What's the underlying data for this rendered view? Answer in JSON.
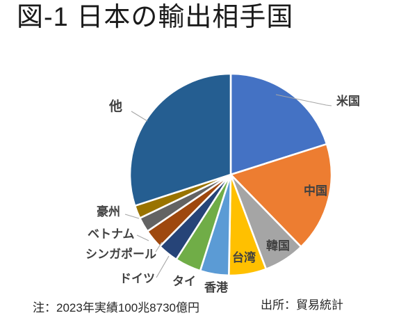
{
  "title": "図-1 日本の輸出相手国",
  "notes": {
    "left": "注：2023年実績100兆8730億円",
    "right": "出所：貿易統計"
  },
  "colors": {
    "background": "#ffffff",
    "label_text": "#404040",
    "leader_line": "#a6a6a6",
    "title_text": "#1a1a1a"
  },
  "chart_data": {
    "type": "pie",
    "title": "図-1 日本の輸出相手国",
    "unit": "%",
    "start_angle_deg": 0,
    "direction": "clockwise",
    "legend": "none",
    "slices": [
      {
        "id": "usa",
        "label": "米国",
        "value": 20.1,
        "color": "#4472C4",
        "label_placement": "outside-leader"
      },
      {
        "id": "china",
        "label": "中国",
        "value": 17.6,
        "color": "#ED7D31",
        "label_placement": "inside"
      },
      {
        "id": "korea",
        "label": "韓国",
        "value": 6.6,
        "color": "#A5A5A5",
        "label_placement": "inside"
      },
      {
        "id": "taiwan",
        "label": "台湾",
        "value": 6.0,
        "color": "#FFC000",
        "label_placement": "inside"
      },
      {
        "id": "hongkong",
        "label": "香港",
        "value": 4.6,
        "color": "#5B9BD5",
        "label_placement": "outside"
      },
      {
        "id": "thailand",
        "label": "タイ",
        "value": 4.2,
        "color": "#70AD47",
        "label_placement": "outside"
      },
      {
        "id": "germany",
        "label": "ドイツ",
        "value": 3.3,
        "color": "#264478",
        "label_placement": "outside-leader"
      },
      {
        "id": "singapore",
        "label": "シンガポール",
        "value": 3.1,
        "color": "#9E480E",
        "label_placement": "outside-leader"
      },
      {
        "id": "vietnam",
        "label": "ベトナム",
        "value": 2.4,
        "color": "#636363",
        "label_placement": "outside-leader"
      },
      {
        "id": "australia",
        "label": "豪州",
        "value": 2.1,
        "color": "#997300",
        "label_placement": "outside-leader"
      },
      {
        "id": "others",
        "label": "他",
        "value": 30.0,
        "color": "#255E91",
        "label_placement": "outside-leader"
      }
    ]
  }
}
